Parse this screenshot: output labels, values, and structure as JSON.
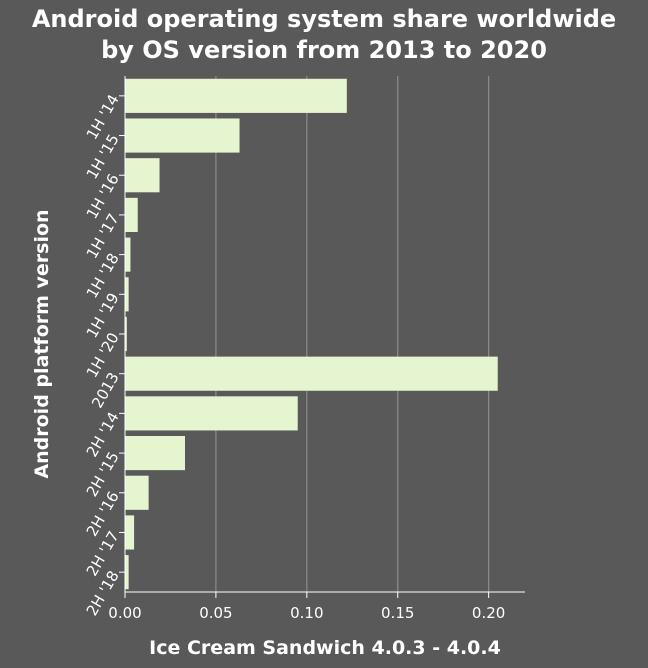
{
  "chart_data": {
    "type": "bar",
    "orientation": "horizontal",
    "title_lines": [
      "Android operating system share worldwide",
      "by OS version from 2013 to 2020"
    ],
    "xlabel": "Ice Cream Sandwich 4.0.3 - 4.0.4",
    "ylabel": "Android platform version",
    "categories": [
      "1H '14",
      "1H '15",
      "1H '16",
      "1H '17",
      "1H '18",
      "1H '19",
      "1H '20",
      "2013",
      "2H '14",
      "2H '15",
      "2H '16",
      "2H '17",
      "2H '18"
    ],
    "values": [
      0.122,
      0.063,
      0.019,
      0.007,
      0.003,
      0.002,
      0.001,
      0.205,
      0.095,
      0.033,
      0.013,
      0.005,
      0.002
    ],
    "xlim": [
      0,
      0.22
    ],
    "xticks": [
      0.0,
      0.05,
      0.1,
      0.15,
      0.2
    ],
    "xtick_labels": [
      "0.00",
      "0.05",
      "0.10",
      "0.15",
      "0.20"
    ],
    "grid": "vertical",
    "legend": "none",
    "colors": {
      "background": "#595959",
      "bar_fill": "#e5f5cf",
      "grid": "#8c8c8c",
      "axis": "#ffffff",
      "text": "#ffffff"
    }
  }
}
